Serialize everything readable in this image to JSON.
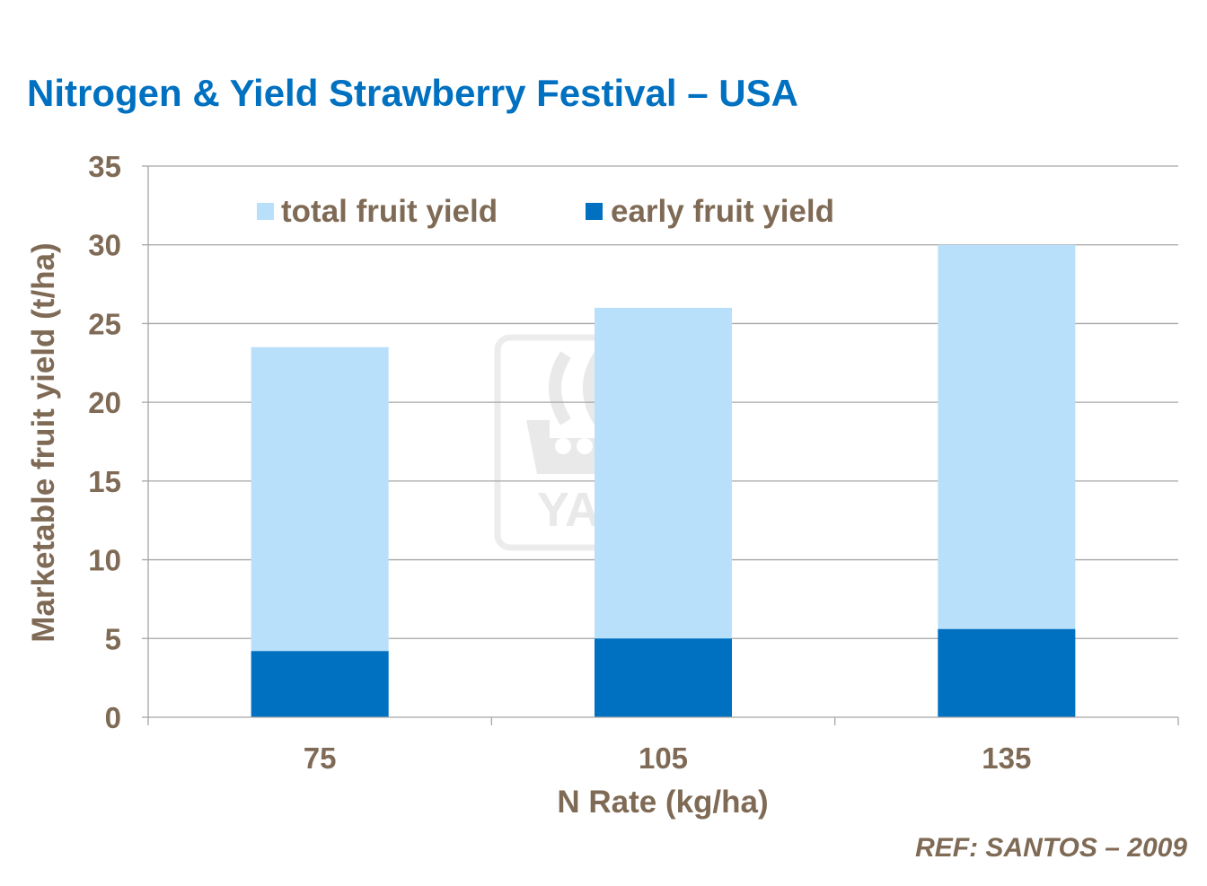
{
  "chart_data": {
    "type": "bar",
    "stacked": false,
    "title": "Nitrogen & Yield Strawberry Festival – USA",
    "xlabel": "N Rate (kg/ha)",
    "ylabel": "Marketable fruit yield (t/ha)",
    "categories": [
      "75",
      "105",
      "135"
    ],
    "series": [
      {
        "name": "total fruit yield",
        "color": "#B9E0FB",
        "values": [
          23.5,
          26.0,
          30.0
        ]
      },
      {
        "name": "early fruit yield",
        "color": "#0070C0",
        "values": [
          4.2,
          5.0,
          5.6
        ]
      }
    ],
    "ylim": [
      0,
      35
    ],
    "yticks": [
      0,
      5,
      10,
      15,
      20,
      25,
      30,
      35
    ],
    "grid": true,
    "legend_position": "top-center"
  },
  "colors": {
    "title": "#0070C0",
    "text": "#7F6A55",
    "grid": "#A6A6A6"
  },
  "watermark": {
    "text": "YARA",
    "icon": "yara-viking-ship-logo"
  },
  "reference": "REF:  SANTOS – 2009"
}
